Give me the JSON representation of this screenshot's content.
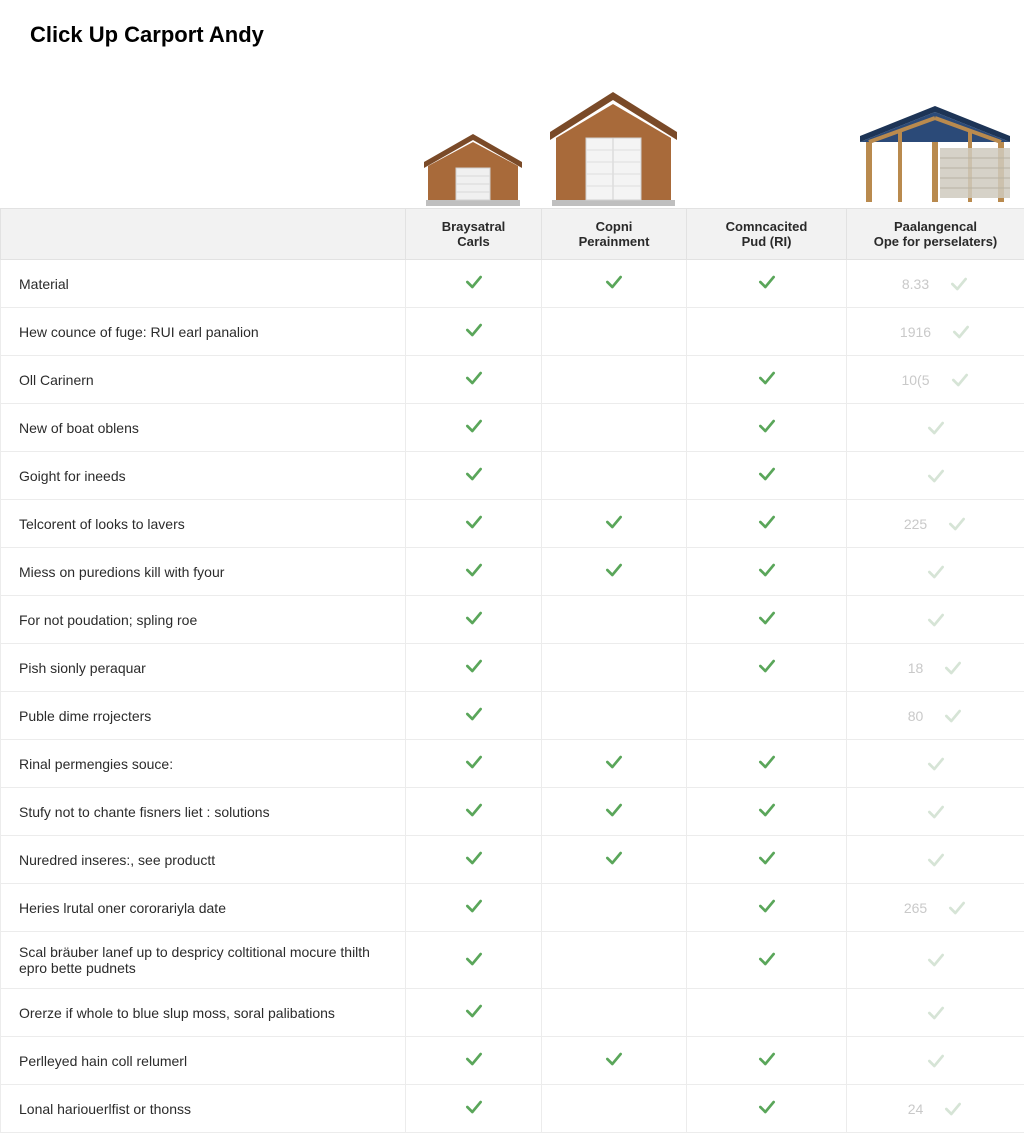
{
  "title": "Click Up Carport Andy",
  "colors": {
    "check_green": "#5aa65a",
    "check_faded": "#d6e4d6",
    "header_bg": "#f2f2f2",
    "border": "#e2e2e2",
    "faded_text": "#c9c9c9"
  },
  "columns": [
    {
      "line1": "Braysatral",
      "line2": "Carls"
    },
    {
      "line1": "Copni",
      "line2": "Perainment"
    },
    {
      "line1": "Comncacited",
      "line2": "Pud (RI)"
    },
    {
      "line1": "Paalangencal",
      "line2": "Ope for perselaters)"
    }
  ],
  "rows": [
    {
      "label": "Material",
      "c1": true,
      "c2": true,
      "c3": true,
      "c4_num": "8.33",
      "c4": true,
      "c4_faded": true
    },
    {
      "label": "Hew counce of fuge: RUI earl panalion",
      "c1": true,
      "c2": false,
      "c3": false,
      "c4_num": "1916",
      "c4": true,
      "c4_faded": true
    },
    {
      "label": "Oll Carinern",
      "c1": true,
      "c2": false,
      "c3": true,
      "c4_num": "10(5",
      "c4": true,
      "c4_faded": true
    },
    {
      "label": "New of boat oblens",
      "c1": true,
      "c2": false,
      "c3": true,
      "c4_num": "",
      "c4": true,
      "c4_faded": true
    },
    {
      "label": "Goight for ineeds",
      "c1": true,
      "c2": false,
      "c3": true,
      "c4_num": "",
      "c4": true,
      "c4_faded": true
    },
    {
      "label": "Telcorent of looks to lavers",
      "c1": true,
      "c2": true,
      "c3": true,
      "c4_num": "225",
      "c4": true,
      "c4_faded": true
    },
    {
      "label": "Miess on puredions kill with fyour",
      "c1": true,
      "c2": true,
      "c3": true,
      "c4_num": "",
      "c4": true,
      "c4_faded": true
    },
    {
      "label": "For not poudation; spling roe",
      "c1": true,
      "c2": false,
      "c3": true,
      "c4_num": "",
      "c4": true,
      "c4_faded": true
    },
    {
      "label": "Pish sionly peraquar",
      "c1": true,
      "c2": false,
      "c3": true,
      "c4_num": "18",
      "c4": true,
      "c4_faded": true
    },
    {
      "label": "Puble dime rrojecters",
      "c1": true,
      "c2": false,
      "c3": false,
      "c4_num": "80",
      "c4": true,
      "c4_faded": true
    },
    {
      "label": "Rinal permengies souce:",
      "c1": true,
      "c2": true,
      "c3": true,
      "c4_num": "",
      "c4": true,
      "c4_faded": true
    },
    {
      "label": "Stufy not to chante fisners liet : solutions",
      "c1": true,
      "c2": true,
      "c3": true,
      "c4_num": "",
      "c4": true,
      "c4_faded": true
    },
    {
      "label": "Nuredred inseres:, see productt",
      "c1": true,
      "c2": true,
      "c3": true,
      "c4_num": "",
      "c4": true,
      "c4_faded": true
    },
    {
      "label": "Heries lrutal oner cororariyla date",
      "c1": true,
      "c2": false,
      "c3": true,
      "c4_num": "265",
      "c4": true,
      "c4_faded": true
    },
    {
      "label": "Scal bräuber lanef up to despricy coltitional mocure thilth epro bette pudnets",
      "c1": true,
      "c2": false,
      "c3": true,
      "c4_num": "",
      "c4": true,
      "c4_faded": true
    },
    {
      "label": "Orerze if whole to blue slup moss, soral palibations",
      "c1": true,
      "c2": false,
      "c3": false,
      "c4_num": "",
      "c4": true,
      "c4_faded": true
    },
    {
      "label": "Perlleyed hain coll relumerl",
      "c1": true,
      "c2": true,
      "c3": true,
      "c4_num": "",
      "c4": true,
      "c4_faded": true
    },
    {
      "label": "Lonal hariouerlfist or thonss",
      "c1": true,
      "c2": false,
      "c3": true,
      "c4_num": "24",
      "c4": true,
      "c4_faded": true
    }
  ]
}
